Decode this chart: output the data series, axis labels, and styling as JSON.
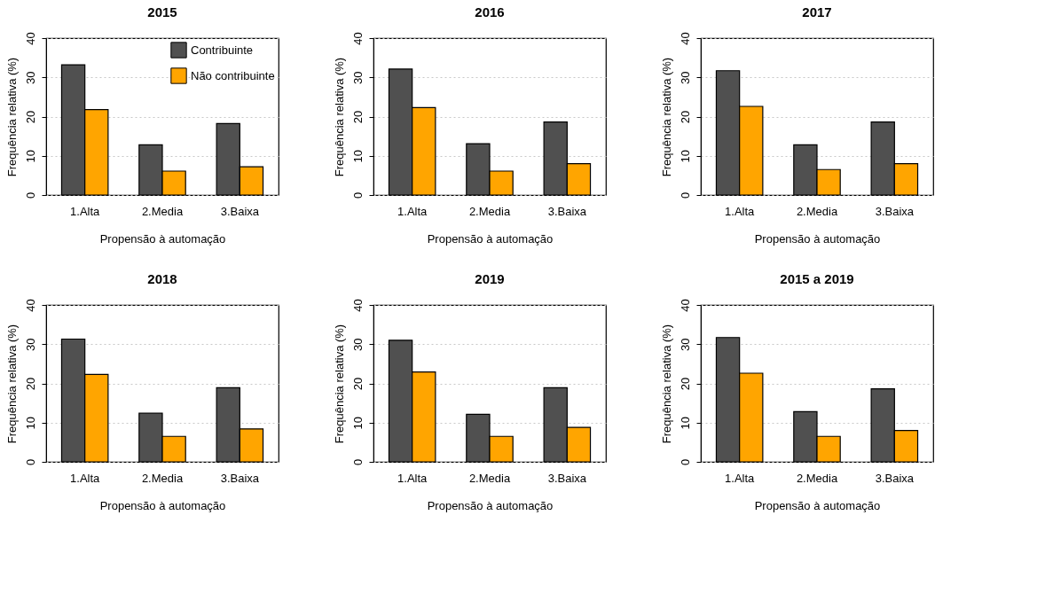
{
  "chart_data": [
    {
      "type": "bar",
      "title": "2015",
      "xlabel": "Propensão à automação",
      "ylabel": "Frequência relativa (%)",
      "categories": [
        "1.Alta",
        "2.Media",
        "3.Baixa"
      ],
      "ylim": [
        0,
        40
      ],
      "yticks": [
        0,
        10,
        20,
        30,
        40
      ],
      "grid": "y",
      "legend": "top right",
      "series": [
        {
          "name": "Contribuinte",
          "color": "#505050",
          "values": [
            33.2,
            12.8,
            18.2
          ]
        },
        {
          "name": "Não contribuinte",
          "color": "#ffa500",
          "values": [
            21.8,
            6.1,
            7.2
          ]
        }
      ]
    },
    {
      "type": "bar",
      "title": "2016",
      "xlabel": "Propensão à automação",
      "ylabel": "Frequência relativa (%)",
      "categories": [
        "1.Alta",
        "2.Media",
        "3.Baixa"
      ],
      "ylim": [
        0,
        40
      ],
      "yticks": [
        0,
        10,
        20,
        30,
        40
      ],
      "grid": "y",
      "series": [
        {
          "color": "#505050",
          "values": [
            32.1,
            13.1,
            18.6
          ]
        },
        {
          "color": "#ffa500",
          "values": [
            22.3,
            6.1,
            8.0
          ]
        }
      ]
    },
    {
      "type": "bar",
      "title": "2017",
      "xlabel": "Propensão à automação",
      "ylabel": "Frequência relativa (%)",
      "categories": [
        "1.Alta",
        "2.Media",
        "3.Baixa"
      ],
      "ylim": [
        0,
        40
      ],
      "yticks": [
        0,
        10,
        20,
        30,
        40
      ],
      "grid": "y",
      "series": [
        {
          "color": "#505050",
          "values": [
            31.7,
            12.8,
            18.6
          ]
        },
        {
          "color": "#ffa500",
          "values": [
            22.6,
            6.5,
            8.0
          ]
        }
      ]
    },
    {
      "type": "bar",
      "title": "2018",
      "xlabel": "Propensão à automação",
      "ylabel": "Frequência relativa (%)",
      "categories": [
        "1.Alta",
        "2.Media",
        "3.Baixa"
      ],
      "ylim": [
        0,
        40
      ],
      "yticks": [
        0,
        10,
        20,
        30,
        40
      ],
      "grid": "y",
      "series": [
        {
          "color": "#505050",
          "values": [
            31.3,
            12.4,
            18.9
          ]
        },
        {
          "color": "#ffa500",
          "values": [
            22.3,
            6.5,
            8.4
          ]
        }
      ]
    },
    {
      "type": "bar",
      "title": "2019",
      "xlabel": "Propensão à automação",
      "ylabel": "Frequência relativa (%)",
      "categories": [
        "1.Alta",
        "2.Media",
        "3.Baixa"
      ],
      "ylim": [
        0,
        40
      ],
      "yticks": [
        0,
        10,
        20,
        30,
        40
      ],
      "grid": "y",
      "series": [
        {
          "color": "#505050",
          "values": [
            31.0,
            12.1,
            18.9
          ]
        },
        {
          "color": "#ffa500",
          "values": [
            22.9,
            6.5,
            8.8
          ]
        }
      ]
    },
    {
      "type": "bar",
      "title": "2015 a 2019",
      "xlabel": "Propensão à automação",
      "ylabel": "Frequência relativa (%)",
      "categories": [
        "1.Alta",
        "2.Media",
        "3.Baixa"
      ],
      "ylim": [
        0,
        40
      ],
      "yticks": [
        0,
        10,
        20,
        30,
        40
      ],
      "grid": "y",
      "series": [
        {
          "color": "#505050",
          "values": [
            31.7,
            12.8,
            18.6
          ]
        },
        {
          "color": "#ffa500",
          "values": [
            22.6,
            6.5,
            8.0
          ]
        }
      ]
    }
  ]
}
